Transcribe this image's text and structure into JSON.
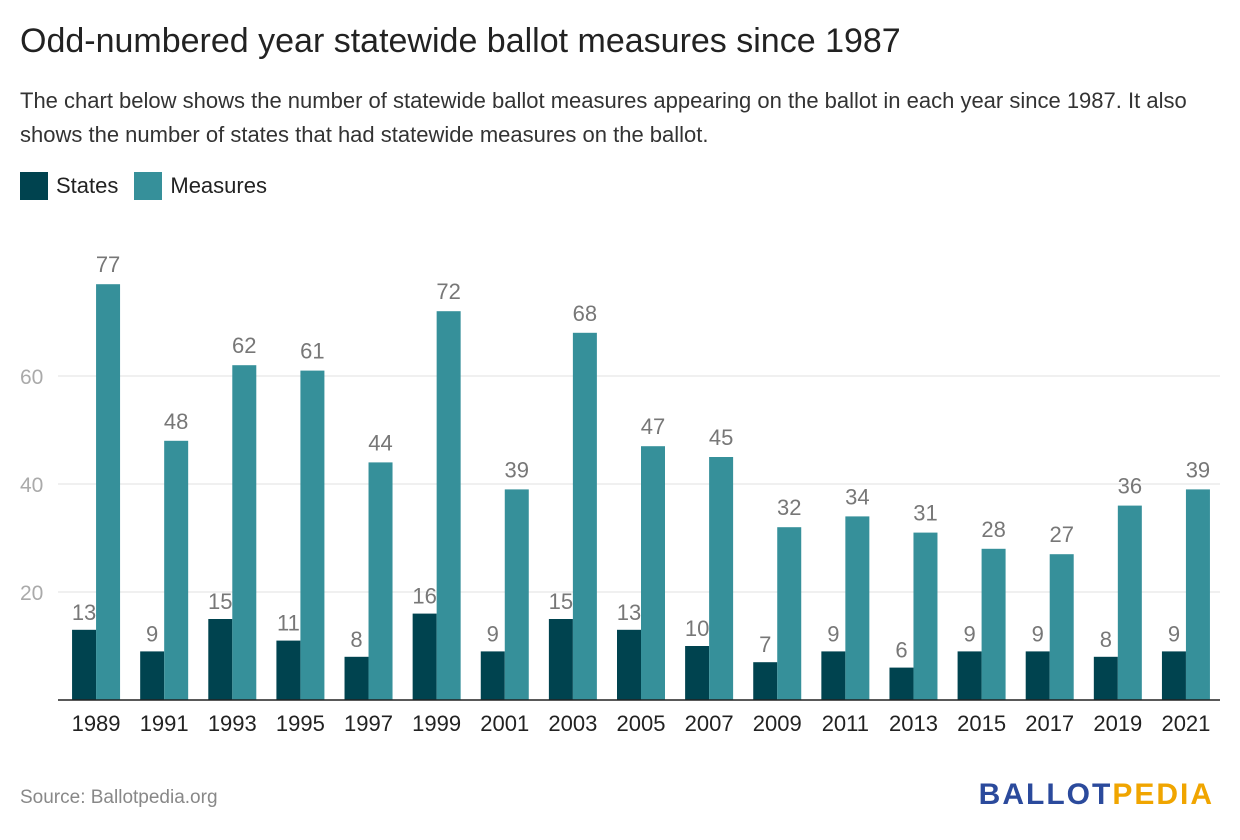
{
  "header": {
    "title": "Odd-numbered year statewide ballot measures since 1987",
    "subtitle": "The chart below shows the number of statewide ballot measures appearing on the ballot in each year since 1987. It also shows the number of states that had statewide measures on the ballot."
  },
  "legend": {
    "states_label": "States",
    "measures_label": "Measures"
  },
  "colors": {
    "states": "#00434f",
    "measures": "#36909a",
    "grid": "#e0e0e0",
    "axis": "#222222",
    "tick_text": "#aaaaaa",
    "label_text": "#777777",
    "logo_ballot": "#2b4a9c",
    "logo_pedia": "#f0a500"
  },
  "footer": {
    "source": "Source: Ballotpedia.org",
    "logo_ballot": "BALLOT",
    "logo_pedia": "PEDIA"
  },
  "chart_data": {
    "type": "bar",
    "title": "Odd-numbered year statewide ballot measures since 1987",
    "xlabel": "",
    "ylabel": "",
    "ylim": [
      0,
      80
    ],
    "yticks": [
      20,
      40,
      60
    ],
    "grid": true,
    "legend_position": "top-left",
    "categories": [
      "1989",
      "1991",
      "1993",
      "1995",
      "1997",
      "1999",
      "2001",
      "2003",
      "2005",
      "2007",
      "2009",
      "2011",
      "2013",
      "2015",
      "2017",
      "2019",
      "2021"
    ],
    "series": [
      {
        "name": "States",
        "values": [
          13,
          9,
          15,
          11,
          8,
          16,
          9,
          15,
          13,
          10,
          7,
          9,
          6,
          9,
          9,
          8,
          9
        ]
      },
      {
        "name": "Measures",
        "values": [
          77,
          48,
          62,
          61,
          44,
          72,
          39,
          68,
          47,
          45,
          32,
          34,
          31,
          28,
          27,
          36,
          39
        ]
      }
    ]
  }
}
